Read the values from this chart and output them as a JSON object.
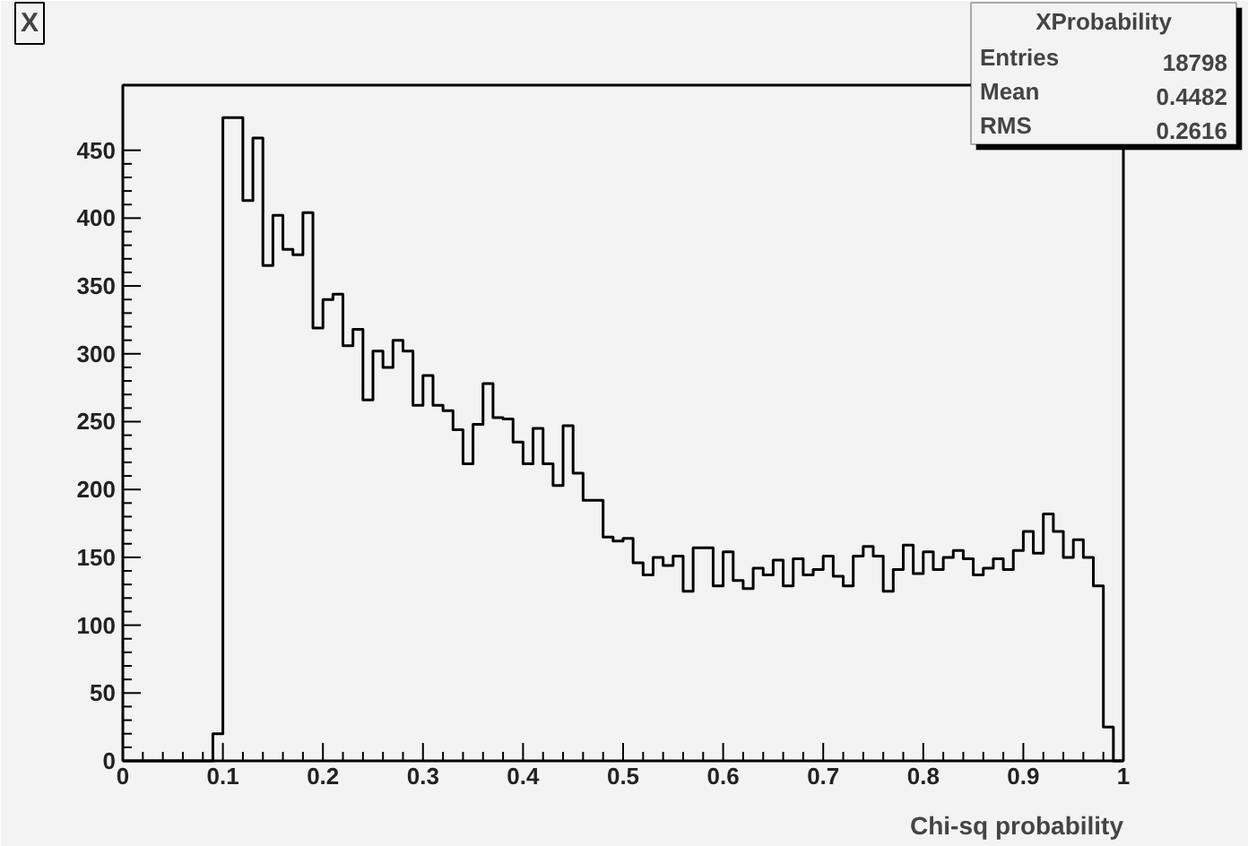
{
  "chart_data": {
    "type": "histogram",
    "title": "X",
    "xlabel": "Chi-sq probability",
    "bins": [
      0,
      0.01,
      0.02,
      0.03,
      0.04,
      0.05,
      0.06,
      0.07,
      0.08,
      0.09,
      0.1,
      0.11,
      0.12,
      0.13,
      0.14,
      0.15,
      0.16,
      0.17,
      0.18,
      0.19,
      0.2,
      0.21,
      0.22,
      0.23,
      0.24,
      0.25,
      0.26,
      0.27,
      0.28,
      0.29,
      0.3,
      0.31,
      0.32,
      0.33,
      0.34,
      0.35,
      0.36,
      0.37,
      0.38,
      0.39,
      0.4,
      0.41,
      0.42,
      0.43,
      0.44,
      0.45,
      0.46,
      0.47,
      0.48,
      0.49,
      0.5,
      0.51,
      0.52,
      0.53,
      0.54,
      0.55,
      0.56,
      0.57,
      0.58,
      0.59,
      0.6,
      0.61,
      0.62,
      0.63,
      0.64,
      0.65,
      0.66,
      0.67,
      0.68,
      0.69,
      0.7,
      0.71,
      0.72,
      0.73,
      0.74,
      0.75,
      0.76,
      0.77,
      0.78,
      0.79,
      0.8,
      0.81,
      0.82,
      0.83,
      0.84,
      0.85,
      0.86,
      0.87,
      0.88,
      0.89,
      0.9,
      0.91,
      0.92,
      0.93,
      0.94,
      0.95,
      0.96,
      0.97,
      0.98,
      0.99,
      1
    ],
    "values": [
      0,
      0,
      0,
      0,
      0,
      0,
      0,
      0,
      0,
      20,
      474,
      474,
      413,
      459,
      365,
      402,
      377,
      373,
      404,
      319,
      340,
      344,
      306,
      318,
      266,
      302,
      290,
      310,
      302,
      262,
      284,
      262,
      258,
      244,
      219,
      248,
      278,
      253,
      252,
      235,
      219,
      245,
      219,
      203,
      247,
      212,
      192,
      192,
      165,
      162,
      164,
      146,
      137,
      150,
      144,
      151,
      125,
      157,
      157,
      129,
      154,
      133,
      127,
      142,
      137,
      148,
      129,
      149,
      137,
      141,
      151,
      136,
      129,
      151,
      158,
      151,
      125,
      141,
      159,
      138,
      154,
      141,
      150,
      155,
      149,
      137,
      142,
      149,
      141,
      155,
      169,
      153,
      182,
      169,
      150,
      163,
      150,
      129,
      25,
      0
    ],
    "color": "#000000",
    "xlim": [
      0,
      1
    ],
    "ylim": [
      0,
      498
    ],
    "xticks": [
      0,
      0.1,
      0.2,
      0.3,
      0.4,
      0.5,
      0.6,
      0.7,
      0.8,
      0.9,
      1
    ],
    "yticks": [
      0,
      50,
      100,
      150,
      200,
      250,
      300,
      350,
      400,
      450
    ],
    "annotations": [
      "XProbability",
      "Entries",
      "18798",
      "Mean",
      "0.4482",
      "RMS",
      "0.2616"
    ]
  }
}
